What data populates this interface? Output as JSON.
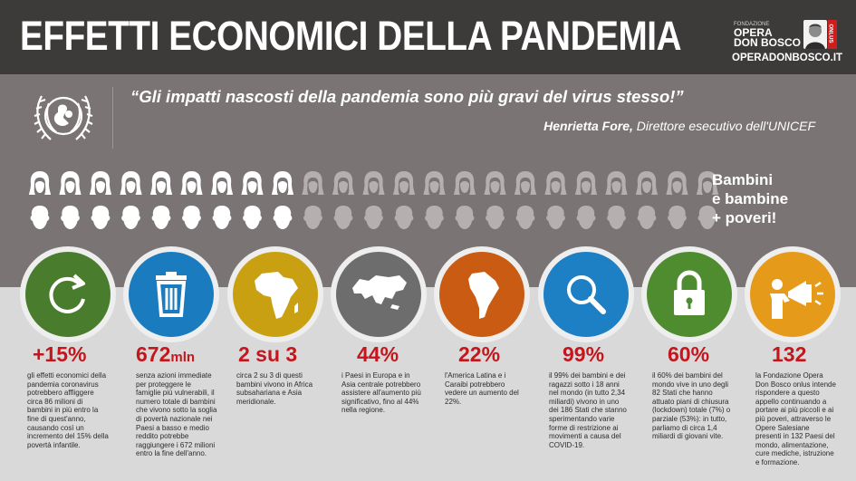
{
  "header": {
    "title": "EFFETTI ECONOMICI DELLA PANDEMIA",
    "logo": {
      "small": "FONDAZIONE",
      "line1": "OPERA",
      "line2": "DON BOSCO",
      "badge": "ONLUS",
      "url": "OPERADONBOSCO.IT"
    }
  },
  "quote": {
    "text": "“Gli impatti nascosti della pandemia sono più gravi del virus stesso!”",
    "author_name": "Henrietta Fore,",
    "author_role": " Direttore esecutivo dell'UNICEF"
  },
  "kids": {
    "label_line1": "Bambini",
    "label_line2": "e bambine",
    "label_line3": "+ poveri!",
    "per_row": 23,
    "highlighted_per_row": 9,
    "color_highlight": "#ffffff",
    "color_normal": "#b5b0b0"
  },
  "colors": {
    "background": "#d9d9d9",
    "header": "#3d3a3a",
    "band": "#7a7474",
    "stat": "#c4161c"
  },
  "items": [
    {
      "icon": "refresh-icon",
      "color": "#4a7c2e",
      "stat": "+15%",
      "unit": "",
      "desc": "gli effetti economici della pandemia coronavirus potrebbero affliggere circa 86 milioni di bambini in più entro la fine di quest'anno, causando così un incremento del 15% della povertà infantile."
    },
    {
      "icon": "trash-icon",
      "color": "#1a7bbf",
      "stat": "672",
      "unit": "mln",
      "desc": "senza azioni immediate per proteggere le famiglie più vulnerabili, il numero totale di bambini che vivono sotto la soglia di povertà nazionale nei Paesi a basso e medio reddito potrebbe raggiungere i 672 milioni entro la fine dell'anno."
    },
    {
      "icon": "africa-icon",
      "color": "#c9a012",
      "stat": "2 su 3",
      "unit": "",
      "desc": "circa 2 su 3 di questi bambini vivono in Africa subsahariana e Asia meridionale."
    },
    {
      "icon": "europe-asia-icon",
      "color": "#6d6d6d",
      "stat": "44%",
      "unit": "",
      "desc": "i Paesi in Europa e in Asia centrale potrebbero assistere all'aumento più significativo, fino al 44% nella regione."
    },
    {
      "icon": "south-america-icon",
      "color": "#c95b12",
      "stat": "22%",
      "unit": "",
      "desc": "l'America Latina e i Caraibi potrebbero vedere un aumento del 22%."
    },
    {
      "icon": "magnifier-icon",
      "color": "#1d7fc4",
      "stat": "99%",
      "unit": "",
      "desc": "il 99% dei bambini e dei ragazzi sotto i 18 anni nel mondo (in tutto 2,34 miliardi) vivono in uno dei 186 Stati che stanno sperimentando varie forme di restrizione ai movimenti a causa del COVID-19."
    },
    {
      "icon": "padlock-icon",
      "color": "#4e8c2f",
      "stat": "60%",
      "unit": "",
      "desc": "il 60% dei bambini del mondo vive in uno degli 82 Stati che hanno attuato piani di chiusura (lockdown) totale (7%) o parziale (53%): in tutto, parliamo di circa 1,4 miliardi di giovani vite."
    },
    {
      "icon": "megaphone-person-icon",
      "color": "#e69a1a",
      "stat": "132",
      "unit": "",
      "desc": "la Fondazione Opera Don Bosco onlus intende rispondere a questo appello continuando a portare ai più piccoli e ai più poveri, attraverso le Opere Salesiane presenti in 132 Paesi del mondo, alimentazione, cure mediche, istruzione e formazione."
    }
  ]
}
